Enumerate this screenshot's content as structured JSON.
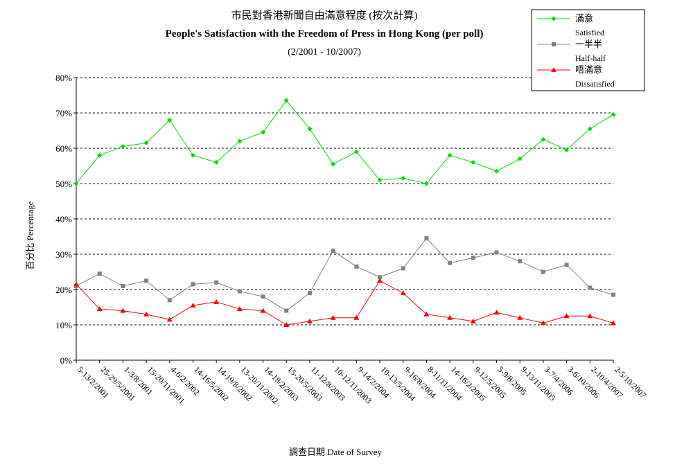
{
  "chart_data": {
    "type": "line",
    "title": "市民對香港新聞自由滿意程度 (按次計算)",
    "subtitle": "People's Satisfaction with the Freedom of Press in Hong Kong (per poll)",
    "subtitle2": "(2/2001 - 10/2007)",
    "xlabel": "調查日期 Date of Survey",
    "ylabel": "百分比 Percentage",
    "ylim": [
      0,
      80
    ],
    "yticks": [
      0,
      10,
      20,
      30,
      40,
      50,
      60,
      70,
      80
    ],
    "ytick_labels": [
      "0%",
      "10%",
      "20%",
      "30%",
      "40%",
      "50%",
      "60%",
      "70%",
      "80%"
    ],
    "grid": "horizontal dashed",
    "legend_position": "top-right",
    "categories": [
      "5-13/2/2001",
      "25-29/5/2001",
      "1-3/8/2001",
      "15-20/11/2001",
      "4-6/2/2002",
      "14-16/5/2002",
      "14-19/8/2002",
      "13-20/11/2002",
      "14-18/2/2003",
      "15-20/5/2003",
      "11-12/8/2003",
      "10-12/11/2003",
      "9-14/2/2004",
      "10-13/5/2004",
      "9-16/8/2004",
      "8-11/11/2004",
      "14-16/2/2005",
      "9-12/5/2005",
      "5-9/8/2005",
      "9-13/11/2005",
      "3-7/4/2006",
      "3-6/10/2006",
      "2-10/4/2007",
      "2-5/10/2007"
    ],
    "series": [
      {
        "name": "滿意",
        "name_en": "Satisfied",
        "color": "#00dd00",
        "marker": "diamond",
        "values": [
          50,
          58,
          60.5,
          61.5,
          68,
          58,
          56,
          62,
          64.5,
          73.5,
          65.5,
          55.5,
          59,
          51,
          51.5,
          50,
          58,
          56,
          53.5,
          57,
          62.5,
          59.5,
          65.5,
          69.5
        ]
      },
      {
        "name": "一半半",
        "name_en": "Half-half",
        "color": "#808080",
        "marker": "square",
        "values": [
          21,
          24.5,
          21,
          22.5,
          17,
          21.5,
          22,
          19.5,
          18,
          14,
          19,
          31,
          26.5,
          23.5,
          26,
          34.5,
          27.5,
          29,
          30.5,
          28,
          25,
          27,
          20.5,
          18.5
        ]
      },
      {
        "name": "唔滿意",
        "name_en": "Dissatisfied",
        "color": "#ff0000",
        "marker": "triangle",
        "values": [
          21.5,
          14.5,
          14,
          13,
          11.5,
          15.5,
          16.5,
          14.5,
          14,
          10,
          11,
          12,
          12,
          22.5,
          19,
          13,
          12,
          11,
          13.5,
          12,
          10.5,
          12.5,
          12.5,
          10.5
        ]
      }
    ]
  }
}
